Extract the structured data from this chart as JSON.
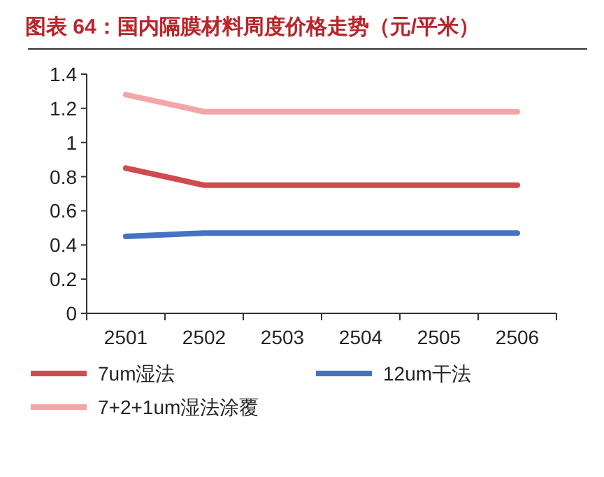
{
  "chart_data": {
    "type": "line",
    "title": "图表 64：国内隔膜材料周度价格走势（元/平米）",
    "categories": [
      "2501",
      "2502",
      "2503",
      "2504",
      "2505",
      "2506"
    ],
    "series": [
      {
        "name": "7um湿法",
        "color": "#d04a4f",
        "values": [
          0.85,
          0.75,
          0.75,
          0.75,
          0.75,
          0.75
        ]
      },
      {
        "name": "12um干法",
        "color": "#4472c4",
        "values": [
          0.45,
          0.47,
          0.47,
          0.47,
          0.47,
          0.47
        ]
      },
      {
        "name": "7+2+1um湿法涂覆",
        "color": "#f4a5a8",
        "values": [
          1.28,
          1.18,
          1.18,
          1.18,
          1.18,
          1.18
        ]
      }
    ],
    "ylim": [
      0,
      1.4
    ],
    "yticks": [
      0,
      0.2,
      0.4,
      0.6,
      0.8,
      1,
      1.2,
      1.4
    ],
    "legend": "bottom",
    "line_style": "solid"
  }
}
